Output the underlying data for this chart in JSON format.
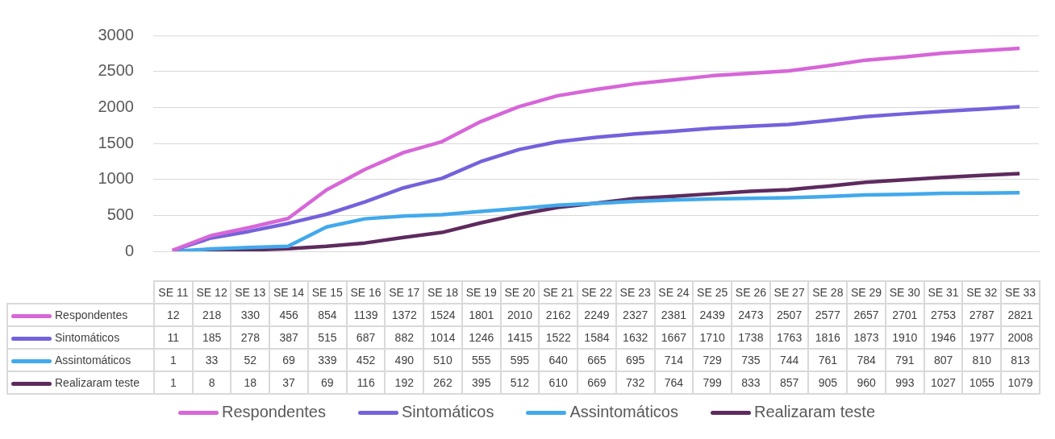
{
  "chart_data": {
    "type": "line",
    "categories": [
      "SE 11",
      "SE 12",
      "SE 13",
      "SE 14",
      "SE 15",
      "SE 16",
      "SE 17",
      "SE 18",
      "SE 19",
      "SE 20",
      "SE 21",
      "SE 22",
      "SE 23",
      "SE 24",
      "SE 25",
      "SE 26",
      "SE 27",
      "SE 28",
      "SE 29",
      "SE 30",
      "SE 31",
      "SE 32",
      "SE 33"
    ],
    "series": [
      {
        "name": "Respondentes",
        "color": "#d766d8",
        "values": [
          12,
          218,
          330,
          456,
          854,
          1139,
          1372,
          1524,
          1801,
          2010,
          2162,
          2249,
          2327,
          2381,
          2439,
          2473,
          2507,
          2577,
          2657,
          2701,
          2753,
          2787,
          2821
        ]
      },
      {
        "name": "Sintomáticos",
        "color": "#7462dc",
        "values": [
          11,
          185,
          278,
          387,
          515,
          687,
          882,
          1014,
          1246,
          1415,
          1522,
          1584,
          1632,
          1667,
          1710,
          1738,
          1763,
          1816,
          1873,
          1910,
          1946,
          1977,
          2008
        ]
      },
      {
        "name": "Assintomáticos",
        "color": "#42a9ec",
        "values": [
          1,
          33,
          52,
          69,
          339,
          452,
          490,
          510,
          555,
          595,
          640,
          665,
          695,
          714,
          729,
          735,
          744,
          761,
          784,
          791,
          807,
          810,
          813
        ]
      },
      {
        "name": "Realizaram teste",
        "color": "#5e2b5e",
        "values": [
          1,
          8,
          18,
          37,
          69,
          116,
          192,
          262,
          395,
          512,
          610,
          669,
          732,
          764,
          799,
          833,
          857,
          905,
          960,
          993,
          1027,
          1055,
          1079
        ]
      }
    ],
    "ylim": [
      0,
      3000
    ],
    "yticks": [
      0,
      500,
      1000,
      1500,
      2000,
      2500,
      3000
    ],
    "grid": "y",
    "legend": "bottom",
    "data_labels": true
  }
}
